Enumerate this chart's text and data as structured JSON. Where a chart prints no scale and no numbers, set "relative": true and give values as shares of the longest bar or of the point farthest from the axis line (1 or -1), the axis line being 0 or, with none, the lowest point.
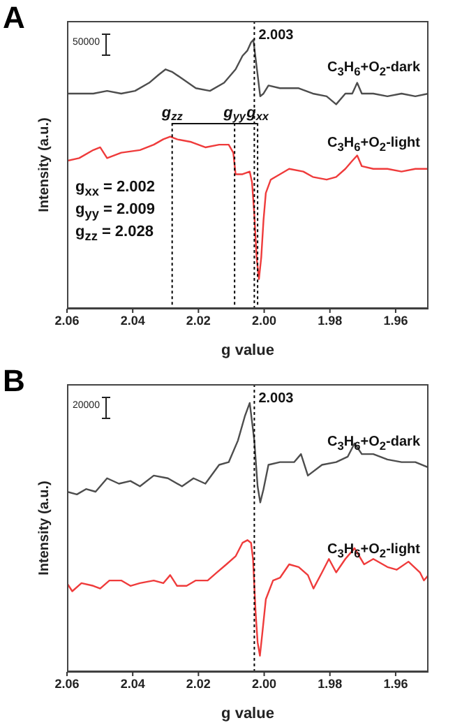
{
  "chart_data": [
    {
      "type": "line",
      "title": "A",
      "xlabel": "g value",
      "ylabel": "Intensity (a.u.)",
      "relative": true,
      "xlim": [
        2.06,
        1.95
      ],
      "xticks": [
        2.06,
        2.04,
        2.02,
        {
          "value": 2.0,
          "label": "2.00"
        },
        1.98,
        1.96
      ],
      "series": [
        {
          "name": "C$_{3}$H$_{6}$+O$_{2}$-dark",
          "color": "#4d4d4d",
          "x": [
            2.06,
            2.0563,
            2.052,
            2.0478,
            2.0435,
            2.0393,
            2.035,
            2.0321,
            2.03,
            2.0279,
            2.0243,
            2.0208,
            2.0165,
            2.0122,
            2.0087,
            2.0066,
            2.0051,
            2.004,
            2.0033,
            2.0026,
            2.0019,
            2.0012,
            2.0002,
            1.9987,
            1.9952,
            1.9895,
            1.9852,
            1.981,
            1.9781,
            1.9753,
            1.9732,
            1.9717,
            1.9703,
            1.9668,
            1.9625,
            1.9582,
            1.954,
            1.95
          ],
          "values": [
            0.8,
            0.8,
            0.8,
            0.81,
            0.8,
            0.81,
            0.84,
            0.87,
            0.89,
            0.88,
            0.85,
            0.82,
            0.81,
            0.84,
            0.89,
            0.94,
            0.96,
            0.99,
            1.0,
            0.93,
            0.86,
            0.79,
            0.8,
            0.83,
            0.82,
            0.82,
            0.8,
            0.79,
            0.76,
            0.8,
            0.8,
            0.84,
            0.8,
            0.8,
            0.79,
            0.8,
            0.79,
            0.8
          ]
        },
        {
          "name": "C$_{3}$H$_{6}$+O$_{2}$-light",
          "color": "#ef3b3b",
          "x": [
            2.06,
            2.0563,
            2.052,
            2.0499,
            2.0478,
            2.0435,
            2.0378,
            2.0336,
            2.0307,
            2.0286,
            2.0265,
            2.0222,
            2.0179,
            2.0137,
            2.0108,
            2.0094,
            2.0087,
            2.0066,
            2.0044,
            2.0037,
            2.003,
            2.0023,
            2.0016,
            2.0009,
            2.0002,
            1.9995,
            1.998,
            1.9952,
            1.9924,
            1.9881,
            1.9852,
            1.981,
            1.9781,
            1.9753,
            1.9732,
            1.9717,
            1.9703,
            1.9668,
            1.9625,
            1.9582,
            1.954,
            1.95
          ],
          "values": [
            0.55,
            0.56,
            0.59,
            0.6,
            0.56,
            0.58,
            0.59,
            0.61,
            0.63,
            0.64,
            0.63,
            0.62,
            0.6,
            0.61,
            0.61,
            0.58,
            0.5,
            0.5,
            0.51,
            0.47,
            0.35,
            0.19,
            0.11,
            0.19,
            0.33,
            0.43,
            0.48,
            0.5,
            0.52,
            0.51,
            0.49,
            0.48,
            0.49,
            0.52,
            0.55,
            0.57,
            0.53,
            0.52,
            0.52,
            0.51,
            0.52,
            0.52
          ]
        }
      ],
      "ref_lines": [
        {
          "axis": "x",
          "value": 2.003,
          "label": "2.003",
          "color": "#000000",
          "line_style": "dotted"
        },
        {
          "axis": "x",
          "value": 2.002,
          "label": "g$_{xx}$",
          "color": "#000000",
          "line_style": "dotted"
        },
        {
          "axis": "x",
          "value": 2.009,
          "label": "g$_{yy}$",
          "color": "#000000",
          "line_style": "dotted"
        },
        {
          "axis": "x",
          "value": 2.028,
          "label": "g$_{zz}$",
          "color": "#000000",
          "line_style": "dotted"
        }
      ],
      "annotations": [
        "50000",
        "g$_{xx}$ = 2.002",
        "g$_{yy}$ = 2.009",
        "g$_{zz}$ = 2.028"
      ]
    },
    {
      "type": "line",
      "title": "B",
      "xlabel": "g value",
      "ylabel": "Intensity (a.u.)",
      "relative": true,
      "xlim": [
        2.06,
        1.95
      ],
      "xticks": [
        2.06,
        2.04,
        2.02,
        {
          "value": 2.0,
          "label": "2.00"
        },
        1.98,
        1.96
      ],
      "series": [
        {
          "name": "C$_{3}$H$_{6}$+O$_{2}$-dark",
          "color": "#4d4d4d",
          "x": [
            2.06,
            2.057,
            2.0542,
            2.0513,
            2.0478,
            2.0442,
            2.0407,
            2.0378,
            2.0336,
            2.0293,
            2.025,
            2.0215,
            2.0179,
            2.0137,
            2.0108,
            2.008,
            2.0059,
            2.0044,
            2.003,
            2.002,
            2.0012,
            2.0002,
            1.9987,
            1.9952,
            1.9909,
            1.9888,
            1.9867,
            1.9824,
            1.9781,
            1.9746,
            1.9725,
            1.9703,
            1.9668,
            1.9625,
            1.9582,
            1.954,
            1.95
          ],
          "values": [
            0.67,
            0.66,
            0.68,
            0.67,
            0.72,
            0.7,
            0.71,
            0.69,
            0.73,
            0.72,
            0.69,
            0.72,
            0.7,
            0.77,
            0.78,
            0.86,
            0.95,
            1.0,
            0.86,
            0.69,
            0.63,
            0.68,
            0.77,
            0.78,
            0.78,
            0.81,
            0.73,
            0.77,
            0.78,
            0.8,
            0.85,
            0.81,
            0.81,
            0.79,
            0.78,
            0.78,
            0.76
          ]
        },
        {
          "name": "C$_{3}$H$_{6}$+O$_{2}$-light",
          "color": "#ef3b3b",
          "x": [
            2.06,
            2.0584,
            2.0556,
            2.052,
            2.0499,
            2.0471,
            2.0435,
            2.0407,
            2.0378,
            2.0336,
            2.0307,
            2.0286,
            2.0265,
            2.0236,
            2.0208,
            2.0172,
            2.0144,
            2.0115,
            2.0087,
            2.0066,
            2.0051,
            2.004,
            2.0034,
            2.0026,
            2.002,
            2.0013,
            2.0006,
            1.9995,
            1.9973,
            1.9952,
            1.9924,
            1.9895,
            1.9867,
            1.985,
            1.9824,
            1.9803,
            1.9781,
            1.9753,
            1.9725,
            1.9696,
            1.9668,
            1.9625,
            1.9597,
            1.9561,
            1.9526,
            1.9514,
            1.95
          ],
          "values": [
            0.33,
            0.3,
            0.33,
            0.32,
            0.31,
            0.34,
            0.34,
            0.32,
            0.33,
            0.34,
            0.33,
            0.36,
            0.32,
            0.32,
            0.34,
            0.34,
            0.37,
            0.4,
            0.43,
            0.48,
            0.49,
            0.48,
            0.42,
            0.22,
            0.11,
            0.06,
            0.14,
            0.27,
            0.34,
            0.35,
            0.4,
            0.39,
            0.36,
            0.31,
            0.37,
            0.42,
            0.37,
            0.42,
            0.46,
            0.4,
            0.42,
            0.39,
            0.38,
            0.41,
            0.37,
            0.34,
            0.36
          ]
        }
      ],
      "ref_lines": [
        {
          "axis": "x",
          "value": 2.003,
          "label": "2.003",
          "color": "#000000",
          "line_style": "dotted"
        }
      ],
      "annotations": [
        "20000"
      ]
    }
  ]
}
